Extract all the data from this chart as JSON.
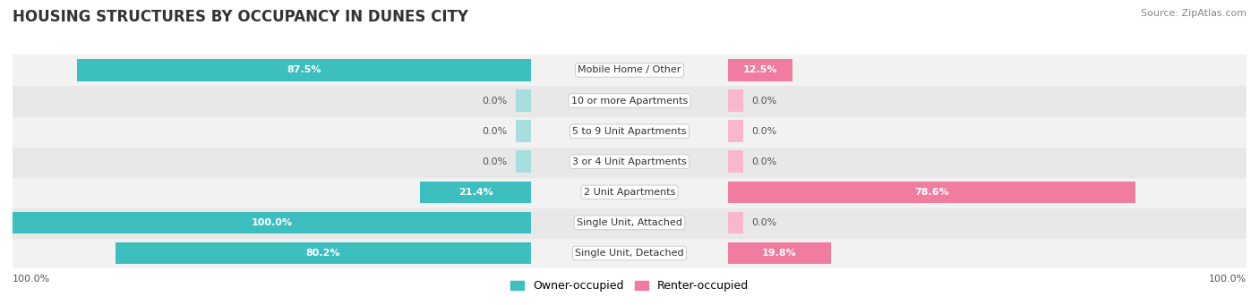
{
  "title": "HOUSING STRUCTURES BY OCCUPANCY IN DUNES CITY",
  "source": "Source: ZipAtlas.com",
  "categories": [
    "Single Unit, Detached",
    "Single Unit, Attached",
    "2 Unit Apartments",
    "3 or 4 Unit Apartments",
    "5 to 9 Unit Apartments",
    "10 or more Apartments",
    "Mobile Home / Other"
  ],
  "owner_pct": [
    80.2,
    100.0,
    21.4,
    0.0,
    0.0,
    0.0,
    87.5
  ],
  "renter_pct": [
    19.8,
    0.0,
    78.6,
    0.0,
    0.0,
    0.0,
    12.5
  ],
  "owner_color": "#3dbfbf",
  "renter_color": "#f07ca0",
  "owner_color_dim": "#a8dede",
  "renter_color_dim": "#f7b8cc",
  "row_bg_even": "#f2f2f2",
  "row_bg_odd": "#e8e8e8",
  "owner_label": "Owner-occupied",
  "renter_label": "Renter-occupied",
  "axis_label_left": "100.0%",
  "axis_label_right": "100.0%",
  "title_fontsize": 12,
  "source_fontsize": 8,
  "bar_label_fontsize": 8,
  "cat_label_fontsize": 8
}
